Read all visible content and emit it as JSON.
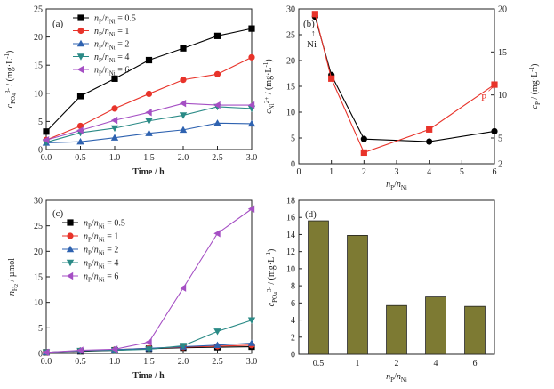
{
  "chart_data": [
    {
      "panel": "(a)",
      "type": "line",
      "xlabel": "Time / h",
      "ylabel": "c_PO4^3- / (mg·L^-1)",
      "ylabel_parts": {
        "sym": "c",
        "sub": "PO",
        "sub4": "4",
        "sup": "3-",
        "unit": " / (mg·L",
        "unit_sup": "-1",
        "close": ")"
      },
      "xlim": [
        0,
        3.0
      ],
      "ylim": [
        0,
        25
      ],
      "xticks": [
        "0.0",
        "0.5",
        "1.0",
        "1.5",
        "2.0",
        "2.5",
        "3.0"
      ],
      "yticks": [
        "0",
        "5",
        "10",
        "15",
        "20",
        "25"
      ],
      "legend_position": "top-left",
      "x": [
        0,
        0.5,
        1.0,
        1.5,
        2.0,
        2.5,
        3.0
      ],
      "series": [
        {
          "name": "nP/nNi = 0.5",
          "ratio": "0.5",
          "color": "#000000",
          "marker": "square",
          "values": [
            3.2,
            9.5,
            12.6,
            15.9,
            18.0,
            20.2,
            21.5
          ]
        },
        {
          "name": "nP/nNi = 1",
          "ratio": "1",
          "color": "#e8332a",
          "marker": "circle",
          "values": [
            1.7,
            4.2,
            7.3,
            9.9,
            12.4,
            13.4,
            16.4
          ]
        },
        {
          "name": "nP/nNi = 2",
          "ratio": "2",
          "color": "#2e62b0",
          "marker": "triangle-up",
          "values": [
            1.2,
            1.4,
            2.1,
            2.9,
            3.5,
            4.7,
            4.6
          ]
        },
        {
          "name": "nP/nNi = 4",
          "ratio": "4",
          "color": "#2a8a86",
          "marker": "triangle-down",
          "values": [
            1.3,
            3.0,
            3.8,
            5.1,
            6.1,
            7.6,
            7.3
          ]
        },
        {
          "name": "nP/nNi = 6",
          "ratio": "6",
          "color": "#a54fc4",
          "marker": "triangle-left",
          "values": [
            1.7,
            3.4,
            5.2,
            6.6,
            8.2,
            7.9,
            7.9
          ]
        }
      ]
    },
    {
      "panel": "(b)",
      "type": "line",
      "xlabel": "nP/nNi",
      "ylabel_left": "c_Ni2+ / (mg·L^-1)",
      "ylabel_right": "c_P / (mg·L^-1)",
      "xlim": [
        0,
        6
      ],
      "ylim_left": [
        0,
        30
      ],
      "ylim_right": [
        2,
        20
      ],
      "xticks": [
        "0",
        "1",
        "2",
        "3",
        "4",
        "5",
        "6"
      ],
      "yticks_left": [
        "0",
        "5",
        "10",
        "15",
        "20",
        "25",
        "30"
      ],
      "yticks_right": [
        "2",
        "5",
        "10",
        "15",
        "20"
      ],
      "annotations": [
        "Ni",
        "P"
      ],
      "series": [
        {
          "name": "Ni",
          "axis": "left",
          "color": "#000000",
          "marker": "circle",
          "x": [
            0.5,
            1,
            2,
            4,
            6
          ],
          "values": [
            28.5,
            17.2,
            4.8,
            4.3,
            6.3
          ]
        },
        {
          "name": "P",
          "axis": "right",
          "color": "#e8332a",
          "marker": "square",
          "x": [
            0.5,
            1,
            2,
            4,
            6
          ],
          "values": [
            19.4,
            11.9,
            3.3,
            6.0,
            11.2
          ]
        }
      ]
    },
    {
      "panel": "(c)",
      "type": "line",
      "xlabel": "Time / h",
      "ylabel": "n_H2 / µmol",
      "xlim": [
        0,
        3.0
      ],
      "ylim": [
        0,
        30
      ],
      "xticks": [
        "0.0",
        "0.5",
        "1.0",
        "1.5",
        "2.0",
        "2.5",
        "3.0"
      ],
      "yticks": [
        "0",
        "5",
        "10",
        "15",
        "20",
        "25",
        "30"
      ],
      "legend_position": "top-left",
      "x": [
        0,
        0.5,
        1.0,
        1.5,
        2.0,
        2.5,
        3.0
      ],
      "series": [
        {
          "name": "nP/nNi = 0.5",
          "ratio": "0.5",
          "color": "#000000",
          "marker": "square",
          "values": [
            0.2,
            0.4,
            0.6,
            0.9,
            1.1,
            1.2,
            1.3
          ]
        },
        {
          "name": "nP/nNi = 1",
          "ratio": "1",
          "color": "#e8332a",
          "marker": "circle",
          "values": [
            0.2,
            0.5,
            0.7,
            1.0,
            1.2,
            1.4,
            1.6
          ]
        },
        {
          "name": "nP/nNi = 2",
          "ratio": "2",
          "color": "#2e62b0",
          "marker": "triangle-up",
          "values": [
            0.2,
            0.5,
            0.7,
            1.0,
            1.3,
            1.6,
            2.0
          ]
        },
        {
          "name": "nP/nNi = 4",
          "ratio": "4",
          "color": "#2a8a86",
          "marker": "triangle-down",
          "values": [
            0.2,
            0.5,
            0.6,
            0.8,
            1.5,
            4.3,
            6.5
          ]
        },
        {
          "name": "nP/nNi = 6",
          "ratio": "6",
          "color": "#a54fc4",
          "marker": "triangle-left",
          "values": [
            0.2,
            0.6,
            0.8,
            2.2,
            12.8,
            23.5,
            28.3
          ]
        }
      ]
    },
    {
      "panel": "(d)",
      "type": "bar",
      "xlabel": "nP/nNi",
      "ylabel": "c_PO4^3- / (mg·L^-1)",
      "ylim": [
        0,
        18
      ],
      "yticks": [
        "0",
        "2",
        "4",
        "6",
        "8",
        "10",
        "12",
        "14",
        "16",
        "18"
      ],
      "categories": [
        "0.5",
        "1",
        "2",
        "4",
        "6"
      ],
      "values": [
        15.6,
        13.9,
        5.7,
        6.7,
        5.6
      ],
      "bar_color": "#7d7a33"
    }
  ]
}
